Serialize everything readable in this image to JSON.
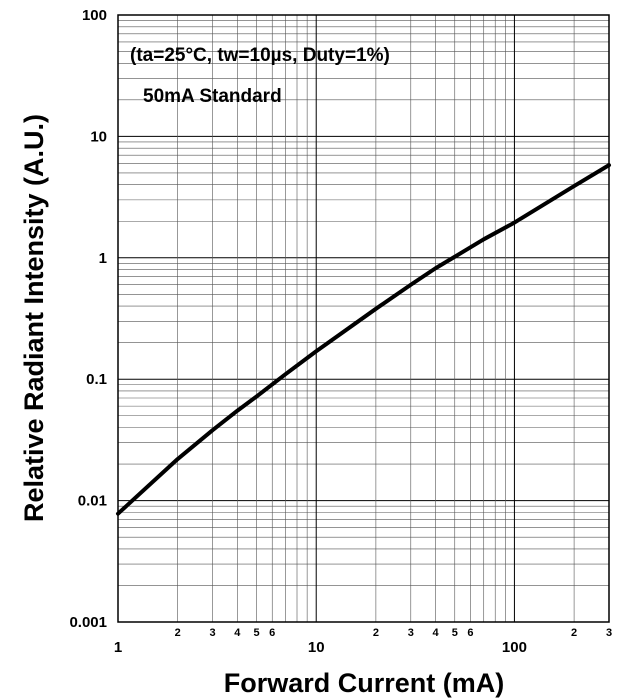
{
  "chart_data": {
    "type": "line",
    "title": "",
    "xlabel": "Forward Current (mA)",
    "ylabel": "Relative Radiant Intensity (A.U.)",
    "xscale": "log",
    "yscale": "log",
    "xlim": [
      1,
      300
    ],
    "ylim": [
      0.001,
      100
    ],
    "grid": true,
    "annotations": [
      "(ta=25°C, tw=10µs, Duty=1%)",
      "50mA Standard"
    ],
    "x_ticks_major": [
      "1",
      "10",
      "100"
    ],
    "x_ticks_minor": [
      "2",
      "3",
      "4",
      "5",
      "6",
      "2",
      "3",
      "4",
      "5",
      "6",
      "2",
      "3"
    ],
    "y_ticks": [
      "0.001",
      "0.01",
      "0.1",
      "1",
      "10",
      "100"
    ],
    "series": [
      {
        "x": [
          1,
          2,
          3,
          4,
          5,
          7,
          10,
          20,
          30,
          40,
          50,
          70,
          100,
          200,
          300
        ],
        "y": [
          0.0078,
          0.022,
          0.038,
          0.055,
          0.072,
          0.11,
          0.17,
          0.38,
          0.6,
          0.82,
          1.02,
          1.42,
          1.95,
          3.9,
          5.8
        ]
      }
    ],
    "line_color": "#000000"
  }
}
